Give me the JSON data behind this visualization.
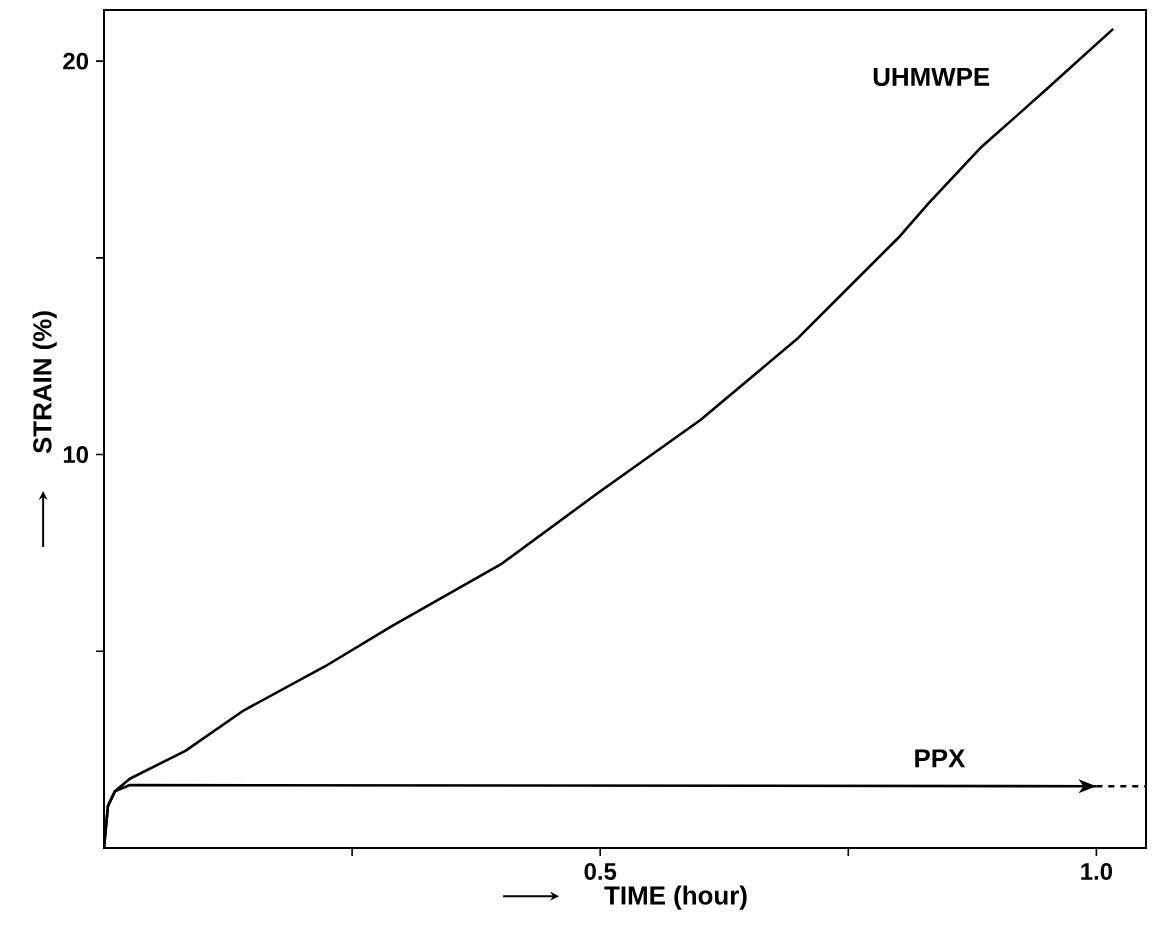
{
  "chart_data": {
    "type": "line",
    "xlabel": "TIME    (hour)",
    "ylabel": "STRAIN    (%)",
    "xlim": [
      0,
      1.05
    ],
    "ylim": [
      0,
      21.3
    ],
    "xticks": [
      {
        "value": 0.25,
        "label": null
      },
      {
        "value": 0.5,
        "label": "0.5"
      },
      {
        "value": 0.75,
        "label": null
      },
      {
        "value": 1.0,
        "label": "1.0"
      }
    ],
    "yticks": [
      {
        "value": 5,
        "label": null
      },
      {
        "value": 10,
        "label": "10"
      },
      {
        "value": 15,
        "label": null
      },
      {
        "value": 20,
        "label": "20"
      }
    ],
    "grid": false,
    "marker": "none",
    "series": [
      {
        "name": "UHMWPE",
        "color": "#000000",
        "line_style": "solid",
        "x": [
          0,
          0.004,
          0.011,
          0.026,
          0.082,
          0.141,
          0.223,
          0.29,
          0.401,
          0.497,
          0.601,
          0.698,
          0.75,
          0.802,
          0.831,
          0.883,
          0.95,
          1.017
        ],
        "values": [
          0,
          1.07,
          1.44,
          1.76,
          2.47,
          3.5,
          4.62,
          5.64,
          7.23,
          9.01,
          10.88,
          12.93,
          14.24,
          15.55,
          16.39,
          17.79,
          19.29,
          20.82
        ]
      },
      {
        "name": "PPX",
        "color": "#000000",
        "line_style": "solid",
        "x": [
          0,
          0.004,
          0.011,
          0.026,
          1.0
        ],
        "values": [
          0,
          1.07,
          1.44,
          1.6,
          1.57
        ]
      },
      {
        "color": "#000000",
        "line_style": "dashed",
        "x": [
          1.0,
          1.05
        ],
        "values": [
          1.57,
          1.57
        ]
      }
    ]
  }
}
